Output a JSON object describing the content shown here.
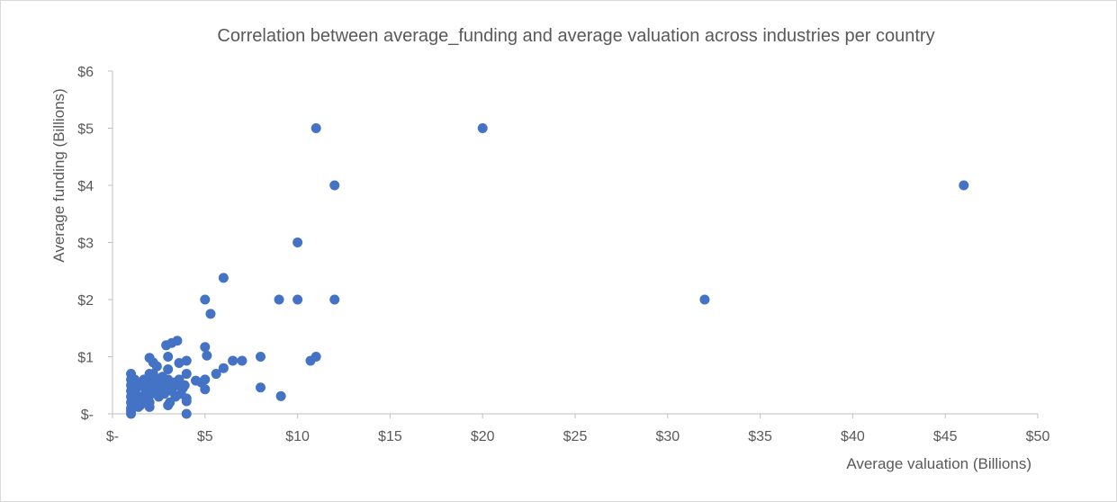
{
  "chart_data": {
    "type": "scatter",
    "title": "Correlation between average_funding  and average valuation across industries per country",
    "xlabel": "Average valuation  (Billions)",
    "ylabel": "Average funding (Billions)",
    "xlim": [
      0,
      50
    ],
    "ylim": [
      0,
      6
    ],
    "x_ticks": [
      0,
      5,
      10,
      15,
      20,
      25,
      30,
      35,
      40,
      45,
      50
    ],
    "x_tick_labels": [
      "$-",
      "$5",
      "$10",
      "$15",
      "$20",
      "$25",
      "$30",
      "$35",
      "$40",
      "$45",
      "$50"
    ],
    "y_ticks": [
      0,
      1,
      2,
      3,
      4,
      5,
      6
    ],
    "y_tick_labels": [
      "$-",
      "$1",
      "$2",
      "$3",
      "$4",
      "$5",
      "$6"
    ],
    "grid": false,
    "marker_color": "#4472c4",
    "points": [
      [
        11,
        5
      ],
      [
        20,
        5
      ],
      [
        12,
        4
      ],
      [
        46,
        4
      ],
      [
        10,
        3
      ],
      [
        32,
        2
      ],
      [
        6,
        2.38
      ],
      [
        5,
        2
      ],
      [
        9,
        2
      ],
      [
        10,
        2
      ],
      [
        12,
        2
      ],
      [
        5.3,
        1.75
      ],
      [
        3.5,
        1.28
      ],
      [
        3.2,
        1.24
      ],
      [
        2.9,
        1.2
      ],
      [
        5,
        1.17
      ],
      [
        5.1,
        1.02
      ],
      [
        8,
        1
      ],
      [
        11,
        1
      ],
      [
        10.7,
        0.93
      ],
      [
        6.5,
        0.93
      ],
      [
        7,
        0.93
      ],
      [
        6,
        0.8
      ],
      [
        5.6,
        0.7
      ],
      [
        8,
        0.46
      ],
      [
        9.1,
        0.31
      ],
      [
        4,
        0.93
      ],
      [
        3.6,
        0.89
      ],
      [
        3,
        1
      ],
      [
        2,
        0.98
      ],
      [
        2.2,
        0.9
      ],
      [
        2.4,
        0.83
      ],
      [
        3,
        0.78
      ],
      [
        4,
        0.7
      ],
      [
        4.5,
        0.58
      ],
      [
        5,
        0.6
      ],
      [
        4.8,
        0.55
      ],
      [
        5,
        0.43
      ],
      [
        4,
        0.27
      ],
      [
        4,
        0.22
      ],
      [
        4,
        0
      ],
      [
        3,
        0.15
      ],
      [
        3.1,
        0.2
      ],
      [
        2,
        0.12
      ],
      [
        2,
        0.2
      ],
      [
        1.5,
        0.15
      ],
      [
        1,
        0
      ],
      [
        1,
        0.05
      ],
      [
        1,
        0.1
      ],
      [
        1,
        0.2
      ],
      [
        1,
        0.3
      ],
      [
        1,
        0.4
      ],
      [
        1,
        0.5
      ],
      [
        1,
        0.6
      ],
      [
        1,
        0.7
      ],
      [
        1.2,
        0.35
      ],
      [
        1.3,
        0.45
      ],
      [
        1.4,
        0.55
      ],
      [
        1.5,
        0.3
      ],
      [
        1.6,
        0.5
      ],
      [
        1.7,
        0.6
      ],
      [
        1.8,
        0.4
      ],
      [
        2,
        0.5
      ],
      [
        2,
        0.6
      ],
      [
        2,
        0.7
      ],
      [
        2.1,
        0.35
      ],
      [
        2.3,
        0.5
      ],
      [
        2.5,
        0.42
      ],
      [
        2.6,
        0.55
      ],
      [
        2.7,
        0.65
      ],
      [
        2.8,
        0.5
      ],
      [
        3,
        0.5
      ],
      [
        3,
        0.6
      ],
      [
        3.2,
        0.4
      ],
      [
        3.3,
        0.55
      ],
      [
        3.5,
        0.5
      ],
      [
        3.6,
        0.6
      ],
      [
        3.8,
        0.45
      ],
      [
        3.9,
        0.5
      ],
      [
        2.2,
        0.7
      ],
      [
        2.4,
        0.6
      ],
      [
        1.9,
        0.25
      ],
      [
        1.6,
        0.2
      ],
      [
        2.5,
        0.3
      ],
      [
        2.8,
        0.35
      ],
      [
        3.4,
        0.3
      ],
      [
        1.2,
        0.6
      ],
      [
        1.3,
        0.25
      ],
      [
        1.4,
        0.12
      ],
      [
        1.8,
        0.55
      ],
      [
        2.9,
        0.45
      ],
      [
        3.7,
        0.35
      ]
    ]
  }
}
